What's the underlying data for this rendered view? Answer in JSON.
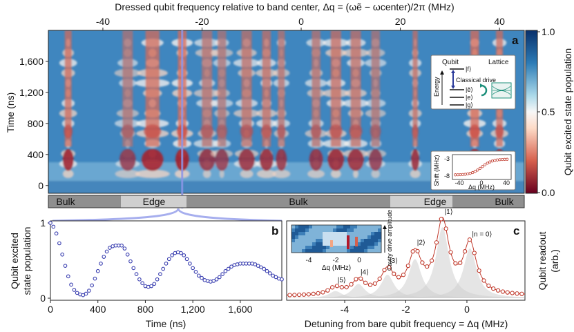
{
  "figure": {
    "top_axis_title": "Dressed qubit frequency relative to band center, Δq = (ωẽ − ωcenter)/2π (MHz)",
    "colorbar_label": "Qubit excited state population",
    "colorbar_ticks": [
      "1.0",
      "0.5",
      "0.0"
    ],
    "region_labels": [
      "Bulk",
      "Edge",
      "Bulk",
      "Edge",
      "Bulk"
    ],
    "panel_letters": [
      "a",
      "b",
      "c"
    ],
    "inset_a": {
      "headers": [
        "Qubit",
        "Lattice"
      ],
      "energy_label": "Energy",
      "drive_label": "Classical drive",
      "states": [
        "|f⟩",
        "|ẽ⟩",
        "|e⟩",
        "|g⟩"
      ]
    },
    "inset_shift": {
      "ylabel": "Shift (MHz)",
      "xlabel": "Δq (MHz)",
      "yticks": [
        "-3",
        "-8"
      ],
      "xticks": [
        "-40",
        "0",
        "40"
      ]
    },
    "inset_c": {
      "ylabel": "Cavity drive amplitude",
      "xlabel": "Δq (MHz)",
      "xticks": [
        "-4",
        "-2",
        "0"
      ]
    },
    "peak_labels": [
      "|5⟩",
      "|4⟩",
      "|3⟩",
      "|2⟩",
      "|1⟩",
      "|n = 0⟩"
    ]
  },
  "chart_data": [
    {
      "type": "heatmap",
      "panel": "a",
      "title": "",
      "xlabel": "Dressed qubit frequency relative to band center, Δq = (ωẽ − ωcenter)/2π (MHz)",
      "ylabel": "Time (ns)",
      "xlim": [
        -51,
        45
      ],
      "ylim": [
        -100,
        2000
      ],
      "xticks": [
        -40,
        -20,
        0,
        20,
        40
      ],
      "xtick_labels": [
        "-40",
        "-20",
        "0",
        "20",
        "40"
      ],
      "yticks": [
        0,
        400,
        800,
        1200,
        1600
      ],
      "ytick_labels": [
        "0",
        "400",
        "800",
        "1,200",
        "1,600"
      ],
      "colormap": "RdBu",
      "zlim": [
        0.0,
        1.0
      ],
      "highlight_x": -24,
      "regions": [
        {
          "label": "Bulk",
          "from": -51,
          "to": -37
        },
        {
          "label": "Edge",
          "from": -37,
          "to": -14
        },
        {
          "label": "Bulk",
          "from": -14,
          "to": 19
        },
        {
          "label": "Edge",
          "from": 19,
          "to": 37
        },
        {
          "label": "Bulk",
          "from": 37,
          "to": 45
        }
      ],
      "red_features": [
        {
          "x": -47,
          "width": 2,
          "strength": 0.9
        },
        {
          "x": -35,
          "width": 3,
          "strength": 0.6
        },
        {
          "x": -30,
          "width": 4,
          "strength": 0.95
        },
        {
          "x": -24,
          "width": 2.5,
          "strength": 1.0
        },
        {
          "x": -19,
          "width": 3,
          "strength": 0.7
        },
        {
          "x": -16,
          "width": 2.5,
          "strength": 0.6
        },
        {
          "x": -11,
          "width": 3,
          "strength": 0.75
        },
        {
          "x": -7,
          "width": 2.5,
          "strength": 0.8
        },
        {
          "x": -4,
          "width": 2,
          "strength": 0.7
        },
        {
          "x": 3,
          "width": 2.5,
          "strength": 0.7
        },
        {
          "x": 7,
          "width": 3,
          "strength": 0.85
        },
        {
          "x": 11,
          "width": 3,
          "strength": 0.8
        },
        {
          "x": 15,
          "width": 2.5,
          "strength": 0.6
        },
        {
          "x": 23,
          "width": 1.5,
          "strength": 0.8
        },
        {
          "x": 35,
          "width": 2.5,
          "strength": 1.0
        },
        {
          "x": 40,
          "width": 2,
          "strength": 0.9
        }
      ]
    },
    {
      "type": "scatter",
      "panel": "b",
      "title": "",
      "xlabel": "Time (ns)",
      "ylabel": "Qubit excited state population",
      "xlim": [
        0,
        1950
      ],
      "ylim": [
        0,
        1
      ],
      "xticks": [
        0,
        400,
        800,
        1200,
        1600
      ],
      "xtick_labels": [
        "0",
        "400",
        "800",
        "1,200",
        "1,600"
      ],
      "yticks": [
        0,
        1
      ],
      "ytick_labels": [
        "0",
        "1"
      ],
      "x": [
        0,
        25,
        50,
        75,
        100,
        125,
        150,
        175,
        200,
        225,
        250,
        275,
        300,
        325,
        350,
        375,
        400,
        425,
        450,
        475,
        500,
        525,
        550,
        575,
        600,
        625,
        650,
        675,
        700,
        725,
        750,
        775,
        800,
        825,
        850,
        875,
        900,
        925,
        950,
        975,
        1000,
        1025,
        1050,
        1075,
        1100,
        1125,
        1150,
        1175,
        1200,
        1225,
        1250,
        1275,
        1300,
        1325,
        1350,
        1375,
        1400,
        1425,
        1450,
        1475,
        1500,
        1525,
        1550,
        1575,
        1600,
        1625,
        1650,
        1675,
        1700,
        1725,
        1750,
        1775,
        1800,
        1825,
        1850,
        1875,
        1900,
        1925,
        1950
      ],
      "values": [
        1.0,
        0.95,
        0.86,
        0.73,
        0.58,
        0.43,
        0.29,
        0.18,
        0.11,
        0.07,
        0.05,
        0.04,
        0.06,
        0.1,
        0.17,
        0.26,
        0.36,
        0.46,
        0.55,
        0.62,
        0.67,
        0.69,
        0.7,
        0.7,
        0.7,
        0.66,
        0.58,
        0.49,
        0.4,
        0.32,
        0.25,
        0.2,
        0.16,
        0.15,
        0.16,
        0.19,
        0.25,
        0.32,
        0.39,
        0.46,
        0.52,
        0.57,
        0.6,
        0.61,
        0.6,
        0.57,
        0.52,
        0.46,
        0.4,
        0.35,
        0.3,
        0.27,
        0.24,
        0.23,
        0.22,
        0.23,
        0.25,
        0.28,
        0.32,
        0.36,
        0.39,
        0.42,
        0.44,
        0.45,
        0.46,
        0.46,
        0.46,
        0.46,
        0.46,
        0.45,
        0.43,
        0.41,
        0.39,
        0.36,
        0.33,
        0.3,
        0.28,
        0.26,
        0.25
      ],
      "color": "#3a3fb0"
    },
    {
      "type": "line",
      "panel": "c",
      "title": "",
      "xlabel": "Detuning from bare qubit frequency = Δq (MHz)",
      "ylabel": "Qubit readout (arb.)",
      "xlim": [
        -5.9,
        1.9
      ],
      "ylim": [
        0,
        1
      ],
      "xticks": [
        -4,
        -2,
        0
      ],
      "xtick_labels": [
        "-4",
        "-2",
        "0"
      ],
      "peaks": [
        {
          "label": "|5⟩",
          "x": -4.3,
          "height": 0.1
        },
        {
          "label": "|4⟩",
          "x": -3.55,
          "height": 0.2
        },
        {
          "label": "|3⟩",
          "x": -2.6,
          "height": 0.33
        },
        {
          "label": "|2⟩",
          "x": -1.7,
          "height": 0.55
        },
        {
          "label": "|1⟩",
          "x": -0.8,
          "height": 1.0
        },
        {
          "label": "|n = 0⟩",
          "x": 0.1,
          "height": 0.7
        }
      ],
      "peak_width": 0.26,
      "baseline": 0.03,
      "color": "#c0392b"
    }
  ]
}
